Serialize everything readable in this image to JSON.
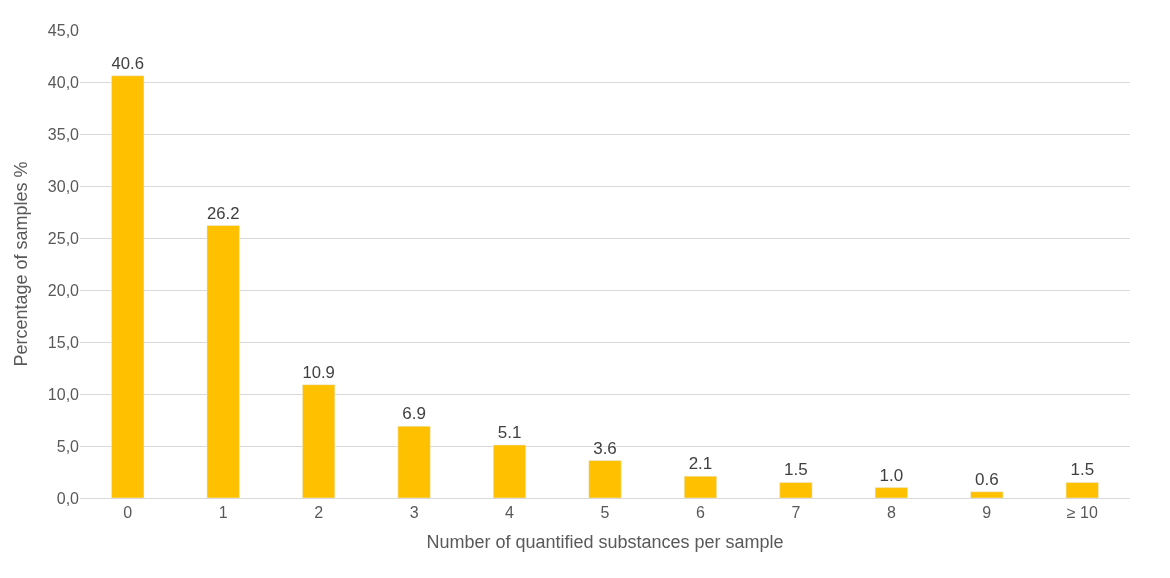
{
  "chart_data": {
    "type": "bar",
    "xlabel": "Number of quantified substances per sample",
    "ylabel": "Percentage of samples %",
    "categories": [
      "0",
      "1",
      "2",
      "3",
      "4",
      "5",
      "6",
      "7",
      "8",
      "9",
      "≥ 10"
    ],
    "values": [
      40.6,
      26.2,
      10.9,
      6.9,
      5.1,
      3.6,
      2.1,
      1.5,
      1.0,
      0.6,
      1.5
    ],
    "value_labels": [
      "40.6",
      "26.2",
      "10.9",
      "6.9",
      "5.1",
      "3.6",
      "2.1",
      "1.5",
      "1.0",
      "0.6",
      "1.5"
    ],
    "color": "#ffc000",
    "ylim": [
      0,
      45
    ],
    "yticks": [
      {
        "value": 0,
        "label": "0,0"
      },
      {
        "value": 5,
        "label": "5,0"
      },
      {
        "value": 10,
        "label": "10,0"
      },
      {
        "value": 15,
        "label": "15,0"
      },
      {
        "value": 20,
        "label": "20,0"
      },
      {
        "value": 25,
        "label": "25,0"
      },
      {
        "value": 30,
        "label": "30,0"
      },
      {
        "value": 35,
        "label": "35,0"
      },
      {
        "value": 40,
        "label": "40,0"
      },
      {
        "value": 45,
        "label": "45,0"
      }
    ],
    "grid": "y",
    "legend": false
  }
}
